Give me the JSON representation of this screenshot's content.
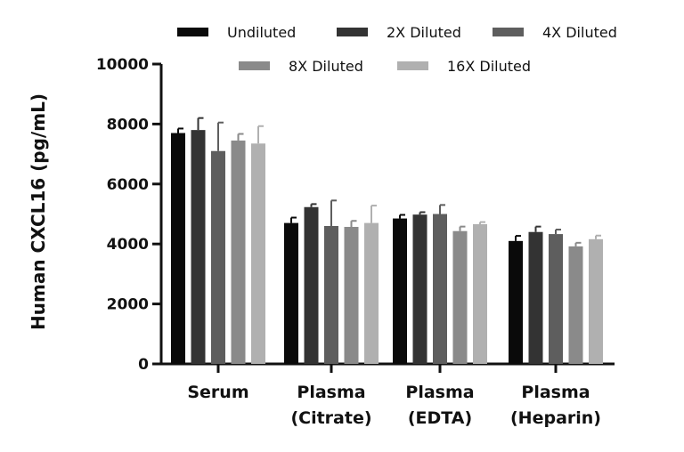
{
  "chart_data": {
    "type": "bar",
    "ylabel": "Human CXCL16 (pg/mL)",
    "xlabel": "",
    "ylim": [
      0,
      10000
    ],
    "yticks": [
      0,
      2000,
      4000,
      6000,
      8000,
      10000
    ],
    "categories": [
      [
        "Serum"
      ],
      [
        "Plasma",
        "(Citrate)"
      ],
      [
        "Plasma",
        "(EDTA)"
      ],
      [
        "Plasma",
        "(Heparin)"
      ]
    ],
    "legend_position": "top",
    "series": [
      {
        "name": "Undiluted",
        "color": "#0a0a0a",
        "values": [
          7700,
          4700,
          4850,
          4100
        ],
        "errors": [
          150,
          180,
          120,
          170
        ]
      },
      {
        "name": "2X Diluted",
        "color": "#333333",
        "values": [
          7800,
          5230,
          4980,
          4400
        ],
        "errors": [
          400,
          100,
          80,
          180
        ]
      },
      {
        "name": "4X Diluted",
        "color": "#5e5e5e",
        "values": [
          7100,
          4600,
          5000,
          4330
        ],
        "errors": [
          950,
          850,
          300,
          150
        ]
      },
      {
        "name": "8X Diluted",
        "color": "#8a8a8a",
        "values": [
          7450,
          4570,
          4430,
          3920
        ],
        "errors": [
          220,
          200,
          150,
          120
        ]
      },
      {
        "name": "16X Diluted",
        "color": "#b0b0b0",
        "values": [
          7350,
          4700,
          4660,
          4160
        ],
        "errors": [
          580,
          580,
          70,
          120
        ]
      }
    ]
  }
}
